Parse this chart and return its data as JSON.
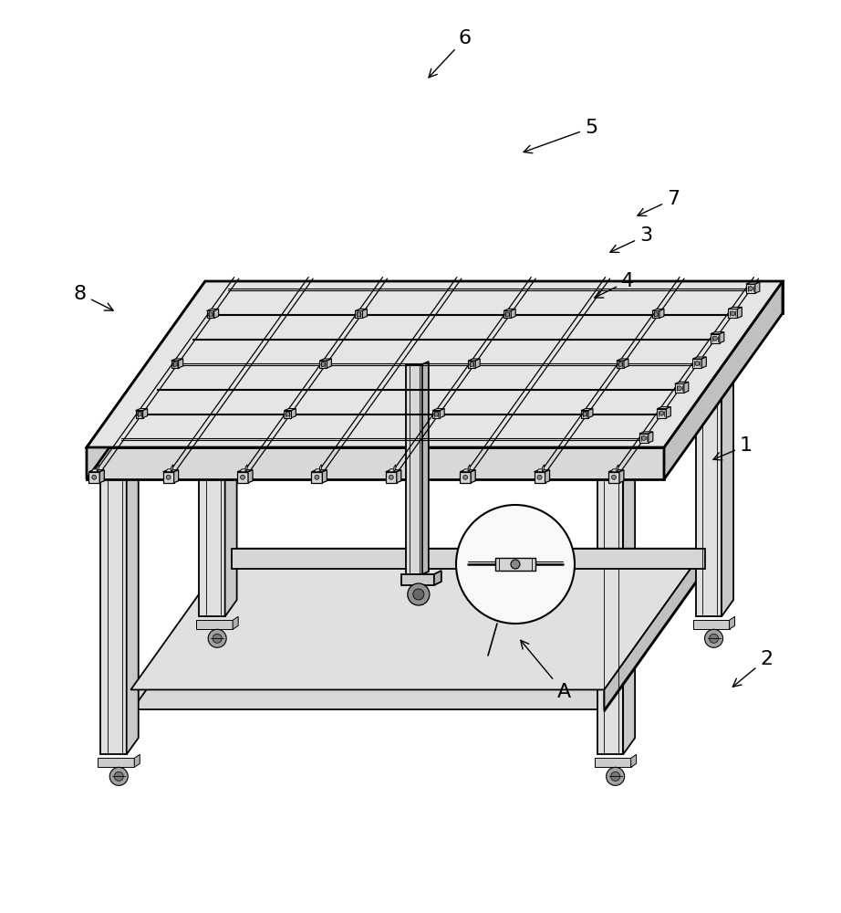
{
  "bg": "#ffffff",
  "lc": "#000000",
  "gray1": "#e8e8e8",
  "gray2": "#d0d0d0",
  "gray3": "#b8b8b8",
  "gray4": "#a0a0a0",
  "gray5": "#c8c8c8",
  "lw_main": 1.3,
  "lw_thick": 2.0,
  "lw_thin": 0.6,
  "annotations": [
    [
      "6",
      510,
      42,
      467,
      88
    ],
    [
      "5",
      648,
      140,
      570,
      168
    ],
    [
      "7",
      738,
      218,
      695,
      238
    ],
    [
      "3",
      708,
      258,
      665,
      278
    ],
    [
      "4",
      688,
      308,
      648,
      328
    ],
    [
      "1",
      818,
      488,
      778,
      505
    ],
    [
      "2",
      840,
      722,
      800,
      755
    ],
    [
      "8",
      88,
      322,
      128,
      342
    ],
    [
      "A",
      618,
      758,
      568,
      698
    ]
  ]
}
